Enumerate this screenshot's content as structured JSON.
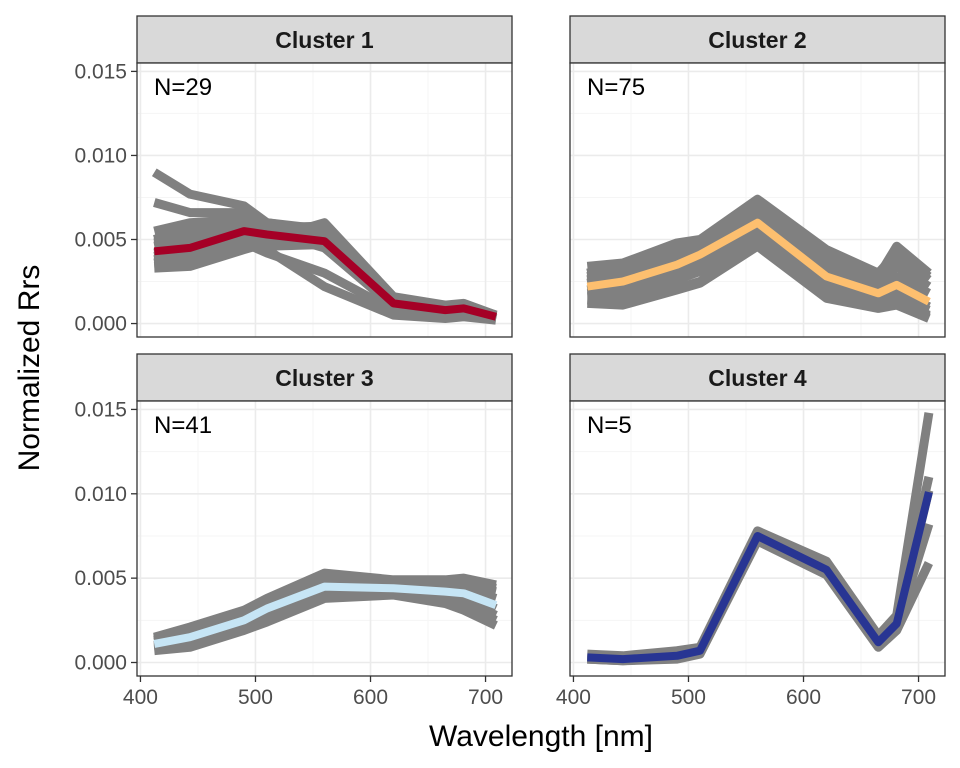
{
  "chart_data": {
    "type": "line",
    "xlabel": "Wavelength [nm]",
    "ylabel": "Normalized Rrs",
    "xlim": [
      397,
      723
    ],
    "ylim": [
      -0.0008,
      0.0155
    ],
    "x_ticks": [
      400,
      500,
      600,
      700
    ],
    "x_tick_labels": [
      "400",
      "500",
      "600",
      "700"
    ],
    "y_ticks": [
      0.0,
      0.005,
      0.01,
      0.015
    ],
    "y_tick_labels": [
      "0.000",
      "0.005",
      "0.010",
      "0.015"
    ],
    "grid": true,
    "wavelengths": [
      412,
      443,
      490,
      510,
      560,
      620,
      665,
      681,
      709
    ],
    "panels": [
      {
        "title": "Cluster 1",
        "n_label": "N=29",
        "mean_color": "#a50026",
        "mean": [
          0.0043,
          0.0045,
          0.0055,
          0.0053,
          0.0049,
          0.0012,
          0.0008,
          0.0009,
          0.0004
        ],
        "members": [
          [
            0.009,
            0.0077,
            0.007,
            0.006,
            0.0055,
            0.0014,
            0.0008,
            0.0009,
            0.0004
          ],
          [
            0.0072,
            0.0066,
            0.0066,
            0.0058,
            0.0053,
            0.0012,
            0.0007,
            0.0008,
            0.0003
          ],
          [
            0.0055,
            0.006,
            0.0062,
            0.0057,
            0.0058,
            0.0015,
            0.001,
            0.0011,
            0.0005
          ],
          [
            0.0048,
            0.0052,
            0.006,
            0.0055,
            0.0045,
            0.001,
            0.0006,
            0.0007,
            0.0003
          ],
          [
            0.0046,
            0.005,
            0.0058,
            0.005,
            0.006,
            0.0016,
            0.0011,
            0.0012,
            0.0005
          ],
          [
            0.0042,
            0.0046,
            0.0052,
            0.0044,
            0.0022,
            0.0005,
            0.0003,
            0.0004,
            0.0002
          ],
          [
            0.004,
            0.0044,
            0.005,
            0.0046,
            0.0047,
            0.0012,
            0.0008,
            0.0009,
            0.0004
          ],
          [
            0.0038,
            0.0042,
            0.0048,
            0.0042,
            0.003,
            0.0008,
            0.0005,
            0.0006,
            0.0002
          ],
          [
            0.0036,
            0.004,
            0.0055,
            0.0052,
            0.005,
            0.0014,
            0.0009,
            0.001,
            0.0004
          ],
          [
            0.0034,
            0.0036,
            0.0045,
            0.0047,
            0.0048,
            0.0011,
            0.0007,
            0.0008,
            0.0003
          ],
          [
            0.0033,
            0.0034,
            0.0044,
            0.0048,
            0.0052,
            0.0013,
            0.0009,
            0.0009,
            0.0004
          ],
          [
            0.005,
            0.0056,
            0.0065,
            0.006,
            0.0056,
            0.0013,
            0.0008,
            0.0009,
            0.0003
          ]
        ]
      },
      {
        "title": "Cluster 2",
        "n_label": "N=75",
        "mean_color": "#fdbf6f",
        "mean": [
          0.0022,
          0.0025,
          0.0035,
          0.0041,
          0.006,
          0.0028,
          0.0018,
          0.0023,
          0.0013
        ],
        "members": [
          [
            0.003,
            0.0035,
            0.0045,
            0.0049,
            0.0072,
            0.004,
            0.0028,
            0.0046,
            0.003
          ],
          [
            0.0028,
            0.0032,
            0.0042,
            0.0048,
            0.0068,
            0.0036,
            0.0026,
            0.004,
            0.0026
          ],
          [
            0.0026,
            0.003,
            0.004,
            0.0046,
            0.0065,
            0.0034,
            0.0024,
            0.0034,
            0.0022
          ],
          [
            0.0024,
            0.0028,
            0.0038,
            0.0044,
            0.0062,
            0.003,
            0.002,
            0.0028,
            0.0018
          ],
          [
            0.002,
            0.0023,
            0.0032,
            0.0038,
            0.0057,
            0.0026,
            0.0016,
            0.002,
            0.001
          ],
          [
            0.0018,
            0.002,
            0.0029,
            0.0034,
            0.0053,
            0.0022,
            0.0013,
            0.0016,
            0.0008
          ],
          [
            0.0016,
            0.0017,
            0.0026,
            0.0031,
            0.005,
            0.0019,
            0.0011,
            0.0013,
            0.0005
          ],
          [
            0.0014,
            0.0013,
            0.0021,
            0.0025,
            0.0048,
            0.0016,
            0.001,
            0.0012,
            0.0004
          ],
          [
            0.0034,
            0.0036,
            0.0048,
            0.005,
            0.0074,
            0.0044,
            0.003,
            0.0042,
            0.0028
          ],
          [
            0.0012,
            0.0011,
            0.002,
            0.0024,
            0.0046,
            0.0015,
            0.0009,
            0.0011,
            0.0003
          ]
        ]
      },
      {
        "title": "Cluster 3",
        "n_label": "N=41",
        "mean_color": "#c6e5f5",
        "mean": [
          0.0011,
          0.0015,
          0.0025,
          0.0032,
          0.0045,
          0.0044,
          0.0042,
          0.0041,
          0.0034
        ],
        "members": [
          [
            0.0015,
            0.0021,
            0.0031,
            0.0038,
            0.0053,
            0.0049,
            0.0049,
            0.005,
            0.0046
          ],
          [
            0.0014,
            0.0019,
            0.0029,
            0.0036,
            0.0051,
            0.0047,
            0.0047,
            0.0048,
            0.0044
          ],
          [
            0.0013,
            0.0018,
            0.0028,
            0.0035,
            0.0049,
            0.0046,
            0.0045,
            0.0046,
            0.0042
          ],
          [
            0.0012,
            0.0016,
            0.0026,
            0.0033,
            0.0047,
            0.0045,
            0.0043,
            0.0044,
            0.0038
          ],
          [
            0.001,
            0.0014,
            0.0024,
            0.0031,
            0.0044,
            0.0043,
            0.0041,
            0.004,
            0.0032
          ],
          [
            0.0009,
            0.0012,
            0.0022,
            0.0029,
            0.0042,
            0.0042,
            0.0039,
            0.0037,
            0.0028
          ],
          [
            0.0008,
            0.0011,
            0.0021,
            0.0027,
            0.004,
            0.0041,
            0.0037,
            0.0034,
            0.0025
          ],
          [
            0.0007,
            0.0009,
            0.0019,
            0.0024,
            0.0038,
            0.004,
            0.0035,
            0.0031,
            0.0022
          ]
        ]
      },
      {
        "title": "Cluster 4",
        "n_label": "N=5",
        "mean_color": "#283593",
        "mean": [
          0.0003,
          0.0002,
          0.0004,
          0.0007,
          0.0075,
          0.0055,
          0.0012,
          0.0023,
          0.0101
        ],
        "members": [
          [
            0.0005,
            0.0004,
            0.0007,
            0.0009,
            0.0078,
            0.006,
            0.0016,
            0.0028,
            0.0148
          ],
          [
            0.0004,
            0.0003,
            0.0006,
            0.0008,
            0.0077,
            0.0058,
            0.0014,
            0.0026,
            0.011
          ],
          [
            0.0003,
            0.0002,
            0.0004,
            0.0007,
            0.0075,
            0.0055,
            0.0012,
            0.0023,
            0.0102
          ],
          [
            0.0002,
            0.0001,
            0.0003,
            0.0006,
            0.0073,
            0.0053,
            0.001,
            0.0021,
            0.0082
          ],
          [
            0.0002,
            0.0001,
            0.0002,
            0.0005,
            0.0072,
            0.0052,
            0.0009,
            0.0019,
            0.0059
          ]
        ]
      }
    ]
  },
  "colors": {
    "member_line": "#808080",
    "strip_fill": "#d9d9d9",
    "panel_border": "#333333",
    "grid_major": "#ebebeb",
    "grid_minor": "#f5f5f5"
  }
}
